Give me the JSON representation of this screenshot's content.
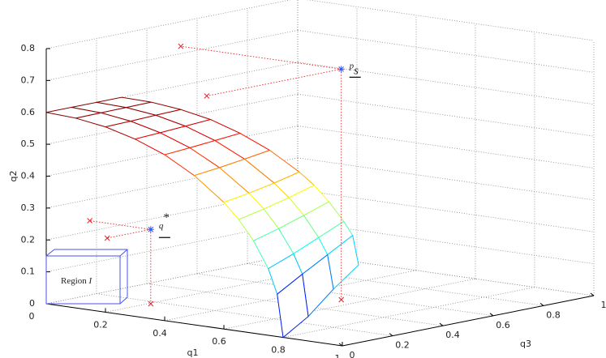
{
  "chart_data": {
    "type": "mesh3d",
    "x_label": "q1",
    "y_label": "q2",
    "z_label": "q3",
    "xlim": [
      0,
      1
    ],
    "ylim": [
      0,
      0.8
    ],
    "zlim": [
      0,
      1
    ],
    "xticks": [
      0,
      0.2,
      0.4,
      0.6,
      0.8,
      1
    ],
    "yticks": [
      0,
      0.1,
      0.2,
      0.3,
      0.4,
      0.5,
      0.6,
      0.7,
      0.8
    ],
    "zticks": [
      0,
      0.2,
      0.4,
      0.6,
      0.8,
      1
    ],
    "grid": true,
    "colormap": "jet",
    "surface": {
      "x": [
        0,
        0.1,
        0.2,
        0.3,
        0.4,
        0.5,
        0.6,
        0.65,
        0.7,
        0.75,
        0.78,
        0.8
      ],
      "z": [
        0,
        0.1,
        0.2,
        0.3
      ],
      "y": [
        [
          0.6,
          0.595,
          0.581,
          0.556,
          0.52,
          0.468,
          0.397,
          0.35,
          0.29,
          0.209,
          0.133,
          0
        ],
        [
          0.6,
          0.596,
          0.583,
          0.56,
          0.526,
          0.477,
          0.41,
          0.367,
          0.312,
          0.24,
          0.18,
          0.05
        ],
        [
          0.6,
          0.597,
          0.586,
          0.565,
          0.533,
          0.488,
          0.426,
          0.387,
          0.338,
          0.275,
          0.225,
          0.12
        ],
        [
          0.6,
          0.598,
          0.588,
          0.57,
          0.54,
          0.5,
          0.445,
          0.41,
          0.365,
          0.31,
          0.27,
          0.18
        ]
      ]
    },
    "points": [
      {
        "name": "q",
        "sup": "*",
        "x": 0.206,
        "y": 0.233,
        "z": 0.173,
        "color": "#3355ff",
        "projection_color": "#e8202a"
      },
      {
        "name": "p",
        "sub": "s",
        "x": 0.542,
        "y": 0.723,
        "z": 0.535,
        "color": "#3355ff",
        "projection_color": "#e8202a"
      }
    ],
    "region": {
      "label": "Region",
      "var": "I"
    }
  }
}
